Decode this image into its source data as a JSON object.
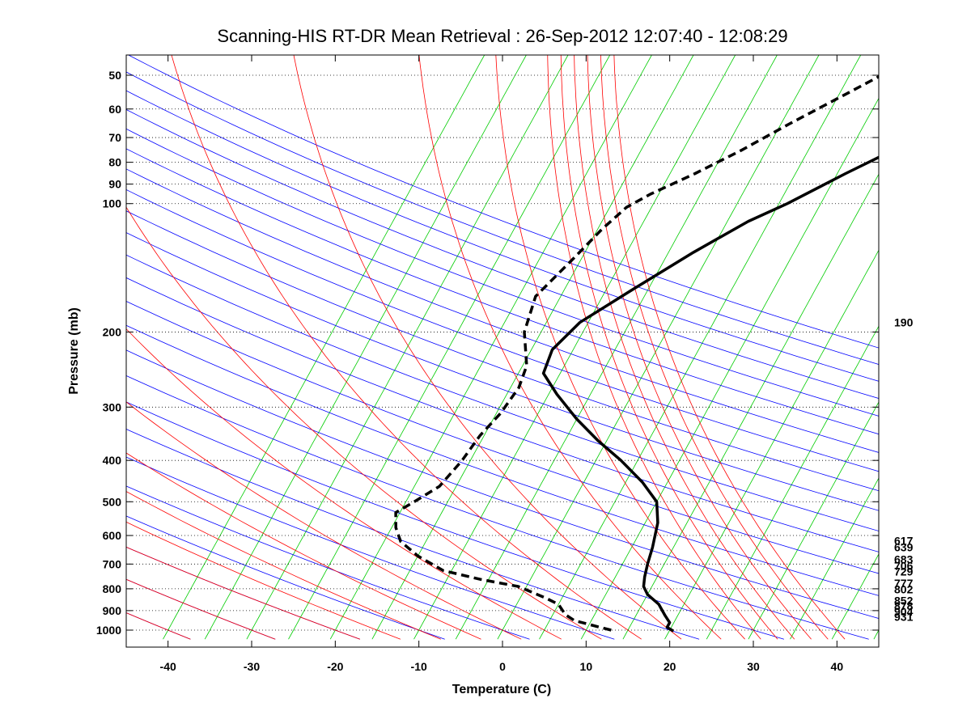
{
  "chart_data": {
    "type": "line",
    "subtype": "skew-t log-p sounding",
    "title": "Scanning-HIS RT-DR Mean Retrieval : 26-Sep-2012 12:07:40 - 12:08:29",
    "xlabel": "Temperature (C)",
    "ylabel": "Pressure (mb)",
    "xlim": [
      -45,
      45
    ],
    "ylim": [
      1050,
      45
    ],
    "y_scale": "log",
    "x_ticks": [
      -40,
      -30,
      -20,
      -10,
      0,
      10,
      20,
      30,
      40
    ],
    "x_tick_labels": [
      "-40",
      "-30",
      "-20",
      "-10",
      "0",
      "10",
      "20",
      "30",
      "40"
    ],
    "y_ticks": [
      50,
      60,
      70,
      80,
      90,
      100,
      200,
      300,
      400,
      500,
      600,
      700,
      800,
      900,
      1000
    ],
    "y_tick_labels": [
      "50",
      "60",
      "70",
      "80",
      "90",
      "100",
      "200",
      "300",
      "400",
      "500",
      "600",
      "700",
      "800",
      "900",
      "1000"
    ],
    "grid": "horizontal dotted",
    "right_side_labels": [
      {
        "text": "190",
        "p": 190
      },
      {
        "text": "617",
        "p": 617
      },
      {
        "text": "639",
        "p": 639
      },
      {
        "text": "683",
        "p": 683
      },
      {
        "text": "706",
        "p": 706
      },
      {
        "text": "729",
        "p": 729
      },
      {
        "text": "777",
        "p": 777
      },
      {
        "text": "802",
        "p": 802
      },
      {
        "text": "852",
        "p": 852
      },
      {
        "text": "878",
        "p": 878
      },
      {
        "text": "904",
        "p": 904
      },
      {
        "text": "931",
        "p": 931
      }
    ],
    "background_lines": {
      "dry_adiabats_color": "#0000ff",
      "moist_adiabats_color": "#ff0000",
      "mixing_ratio_color": "#00cc00",
      "dry_adiabat_ticks_x": [
        -40,
        -30,
        -20,
        -10,
        0,
        10,
        20,
        30,
        40,
        50,
        60,
        70,
        80,
        90,
        100,
        110,
        120,
        130,
        140,
        150,
        160,
        170,
        180,
        190
      ],
      "moist_adiabat_ticks_x": [
        -40,
        -30,
        -20,
        -15,
        -10,
        -5,
        0,
        5,
        10,
        15,
        20,
        25,
        28,
        30,
        32,
        34,
        36,
        38,
        40
      ],
      "mixing_ratio_ticks_x": [
        -40,
        -35,
        -30,
        -25,
        -20,
        -15,
        -10,
        -5,
        0,
        5,
        10,
        15,
        20,
        25,
        30,
        35,
        40,
        45,
        50,
        55,
        60,
        65,
        70,
        75,
        80,
        85,
        90
      ]
    },
    "series": [
      {
        "style": "solid",
        "color": "#000000",
        "points": [
          [
            20.5,
            1005
          ],
          [
            19.5,
            985
          ],
          [
            19.5,
            960
          ],
          [
            18.5,
            925
          ],
          [
            17,
            870
          ],
          [
            15,
            825
          ],
          [
            14,
            790
          ],
          [
            13.5,
            750
          ],
          [
            13,
            700
          ],
          [
            12.5,
            640
          ],
          [
            11.5,
            560
          ],
          [
            10,
            500
          ],
          [
            7,
            450
          ],
          [
            3,
            400
          ],
          [
            -1,
            360
          ],
          [
            -5,
            320
          ],
          [
            -9,
            280
          ],
          [
            -12,
            250
          ],
          [
            -12.5,
            220
          ],
          [
            -11,
            190
          ],
          [
            -7,
            160
          ],
          [
            -2,
            130
          ],
          [
            2.5,
            110
          ],
          [
            6,
            100
          ],
          [
            11,
            85
          ],
          [
            16,
            73
          ],
          [
            23,
            64
          ],
          [
            28,
            56
          ],
          [
            33,
            50
          ],
          [
            38,
            45
          ]
        ]
      },
      {
        "style": "dashed",
        "color": "#000000",
        "points": [
          [
            13,
            1000
          ],
          [
            12,
            990
          ],
          [
            8,
            950
          ],
          [
            6.5,
            920
          ],
          [
            5,
            870
          ],
          [
            3,
            840
          ],
          [
            -1,
            790
          ],
          [
            -6,
            760
          ],
          [
            -11,
            725
          ],
          [
            -15,
            670
          ],
          [
            -18,
            620
          ],
          [
            -19.5,
            575
          ],
          [
            -20.5,
            530
          ],
          [
            -19,
            500
          ],
          [
            -17,
            460
          ],
          [
            -16,
            400
          ],
          [
            -15.5,
            350
          ],
          [
            -14.5,
            310
          ],
          [
            -14,
            270
          ],
          [
            -14.5,
            240
          ],
          [
            -17,
            200
          ],
          [
            -18,
            165
          ],
          [
            -16,
            135
          ],
          [
            -14.5,
            115
          ],
          [
            -13,
            102
          ],
          [
            -11,
            95
          ],
          [
            -7,
            85
          ],
          [
            -3,
            75
          ],
          [
            1,
            65
          ],
          [
            6,
            55
          ],
          [
            10,
            48
          ]
        ]
      }
    ]
  }
}
